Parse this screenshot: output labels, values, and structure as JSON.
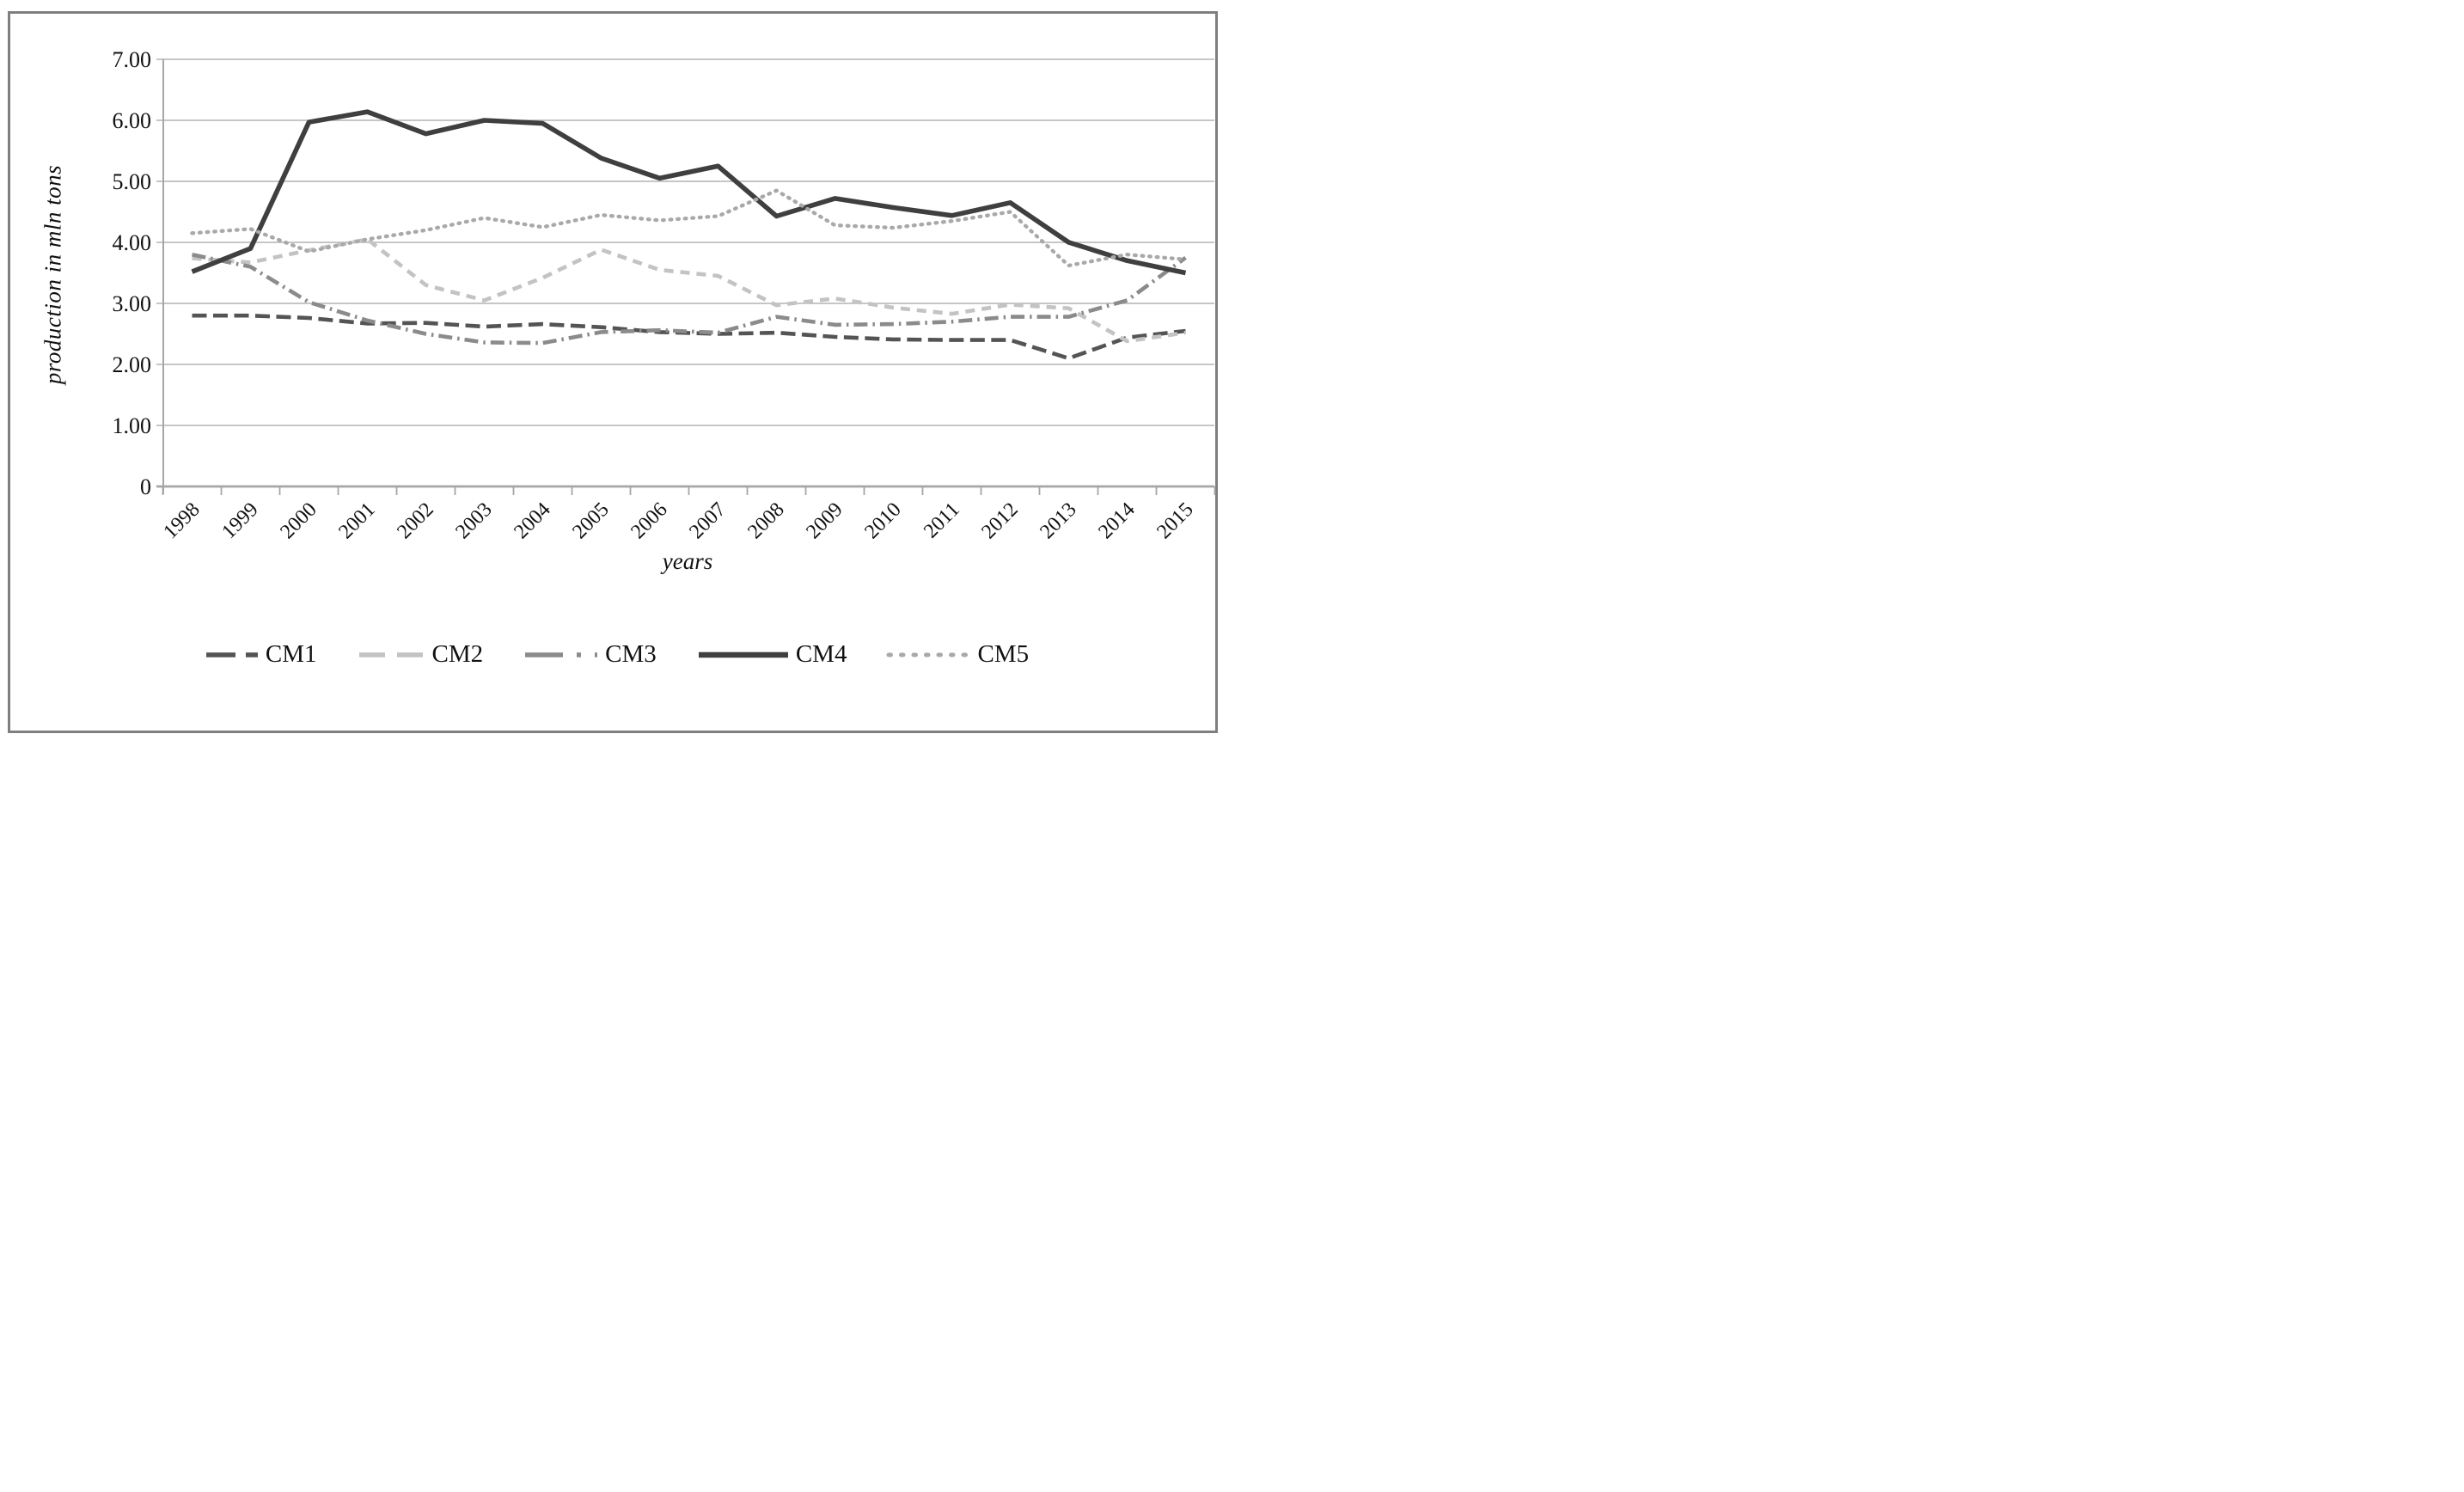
{
  "figure": {
    "border_color": "#7f7f7f",
    "background": "#ffffff"
  },
  "chart_data": {
    "type": "line",
    "title": "",
    "xlabel": "years",
    "ylabel": "production in mln tons",
    "categories": [
      "1998",
      "1999",
      "2000",
      "2001",
      "2002",
      "2003",
      "2004",
      "2005",
      "2006",
      "2007",
      "2008",
      "2009",
      "2010",
      "2011",
      "2012",
      "2013",
      "2014",
      "2015"
    ],
    "ylim": [
      0,
      7
    ],
    "yticks": {
      "values": [
        0,
        1,
        2,
        3,
        4,
        5,
        6,
        7
      ],
      "labels": [
        "0",
        "1.00",
        "2.00",
        "3.00",
        "4.00",
        "5.00",
        "6.00",
        "7.00"
      ]
    },
    "grid": "horizontal",
    "legend_position": "bottom",
    "series": [
      {
        "name": "CM1",
        "color": "#545454",
        "style": "long-dash",
        "values": [
          2.8,
          2.8,
          2.76,
          2.67,
          2.68,
          2.62,
          2.66,
          2.61,
          2.53,
          2.5,
          2.52,
          2.45,
          2.41,
          2.4,
          2.4,
          2.1,
          2.44,
          2.55
        ]
      },
      {
        "name": "CM2",
        "color": "#c3c3c3",
        "style": "dash",
        "values": [
          3.74,
          3.67,
          3.87,
          4.05,
          3.3,
          3.05,
          3.42,
          3.88,
          3.55,
          3.45,
          2.97,
          3.08,
          2.93,
          2.83,
          2.98,
          2.92,
          2.38,
          2.52
        ]
      },
      {
        "name": "CM3",
        "color": "#8b8b8b",
        "style": "dash-dot",
        "values": [
          3.8,
          3.6,
          3.02,
          2.72,
          2.5,
          2.36,
          2.35,
          2.53,
          2.56,
          2.52,
          2.78,
          2.65,
          2.66,
          2.7,
          2.78,
          2.78,
          3.05,
          3.75
        ]
      },
      {
        "name": "CM4",
        "color": "#3f3f3f",
        "style": "solid",
        "values": [
          3.52,
          3.9,
          5.97,
          6.14,
          5.78,
          6.0,
          5.95,
          5.38,
          5.05,
          5.25,
          4.43,
          4.72,
          4.57,
          4.44,
          4.65,
          4.0,
          3.7,
          3.5
        ]
      },
      {
        "name": "CM5",
        "color": "#a9a9a9",
        "style": "dot",
        "values": [
          4.15,
          4.22,
          3.85,
          4.05,
          4.2,
          4.4,
          4.25,
          4.45,
          4.36,
          4.43,
          4.85,
          4.28,
          4.24,
          4.35,
          4.5,
          3.62,
          3.8,
          3.72
        ]
      }
    ]
  }
}
